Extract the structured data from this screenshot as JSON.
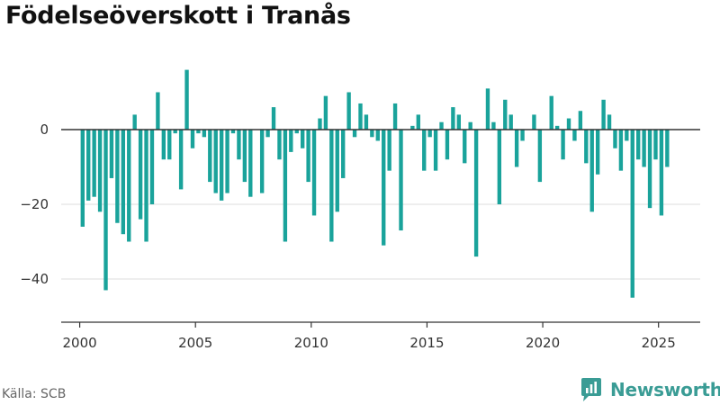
{
  "title": "Födelseöverskott i Tranås",
  "source": "Källa: SCB",
  "brand": {
    "name": "Newsworthy",
    "icon": "newsworthy-logo-icon",
    "color": "#3a9c95"
  },
  "colors": {
    "bar": "#1aa39b",
    "zero_line": "#333333",
    "grid": "#dddddd",
    "axis": "#333333"
  },
  "chart_data": {
    "type": "bar",
    "title": "Födelseöverskott i Tranås",
    "xlabel": "",
    "ylabel": "",
    "frequency": "quarterly",
    "x_start": "2000 Q1",
    "x_ticks": [
      "2000",
      "2005",
      "2010",
      "2015",
      "2020",
      "2025"
    ],
    "y_ticks": [
      0,
      -20,
      -40
    ],
    "ylim": [
      -51,
      19
    ],
    "xlim": [
      1999.2,
      2026.8
    ],
    "grid": true,
    "values": [
      -26,
      -19,
      -18,
      -22,
      -43,
      -13,
      -25,
      -28,
      -30,
      4,
      -24,
      -30,
      -20,
      10,
      -8,
      -8,
      -1,
      -16,
      16,
      -5,
      -1,
      -2,
      -14,
      -17,
      -19,
      -17,
      -1,
      -8,
      -14,
      -18,
      0,
      -17,
      -2,
      6,
      -8,
      -30,
      -6,
      -1,
      -5,
      -14,
      -23,
      3,
      9,
      -30,
      -22,
      -13,
      10,
      -2,
      7,
      4,
      -2,
      -3,
      -31,
      -11,
      7,
      -27,
      0,
      1,
      4,
      -11,
      -2,
      -11,
      2,
      -8,
      6,
      4,
      -9,
      2,
      -34,
      0,
      11,
      2,
      -20,
      8,
      4,
      -10,
      -3,
      0,
      4,
      -14,
      0,
      9,
      1,
      -8,
      3,
      -3,
      5,
      -9,
      -22,
      -12,
      8,
      4,
      -5,
      -11,
      -3,
      -45,
      -8,
      -10,
      -21,
      -8,
      -23,
      -10
    ]
  }
}
